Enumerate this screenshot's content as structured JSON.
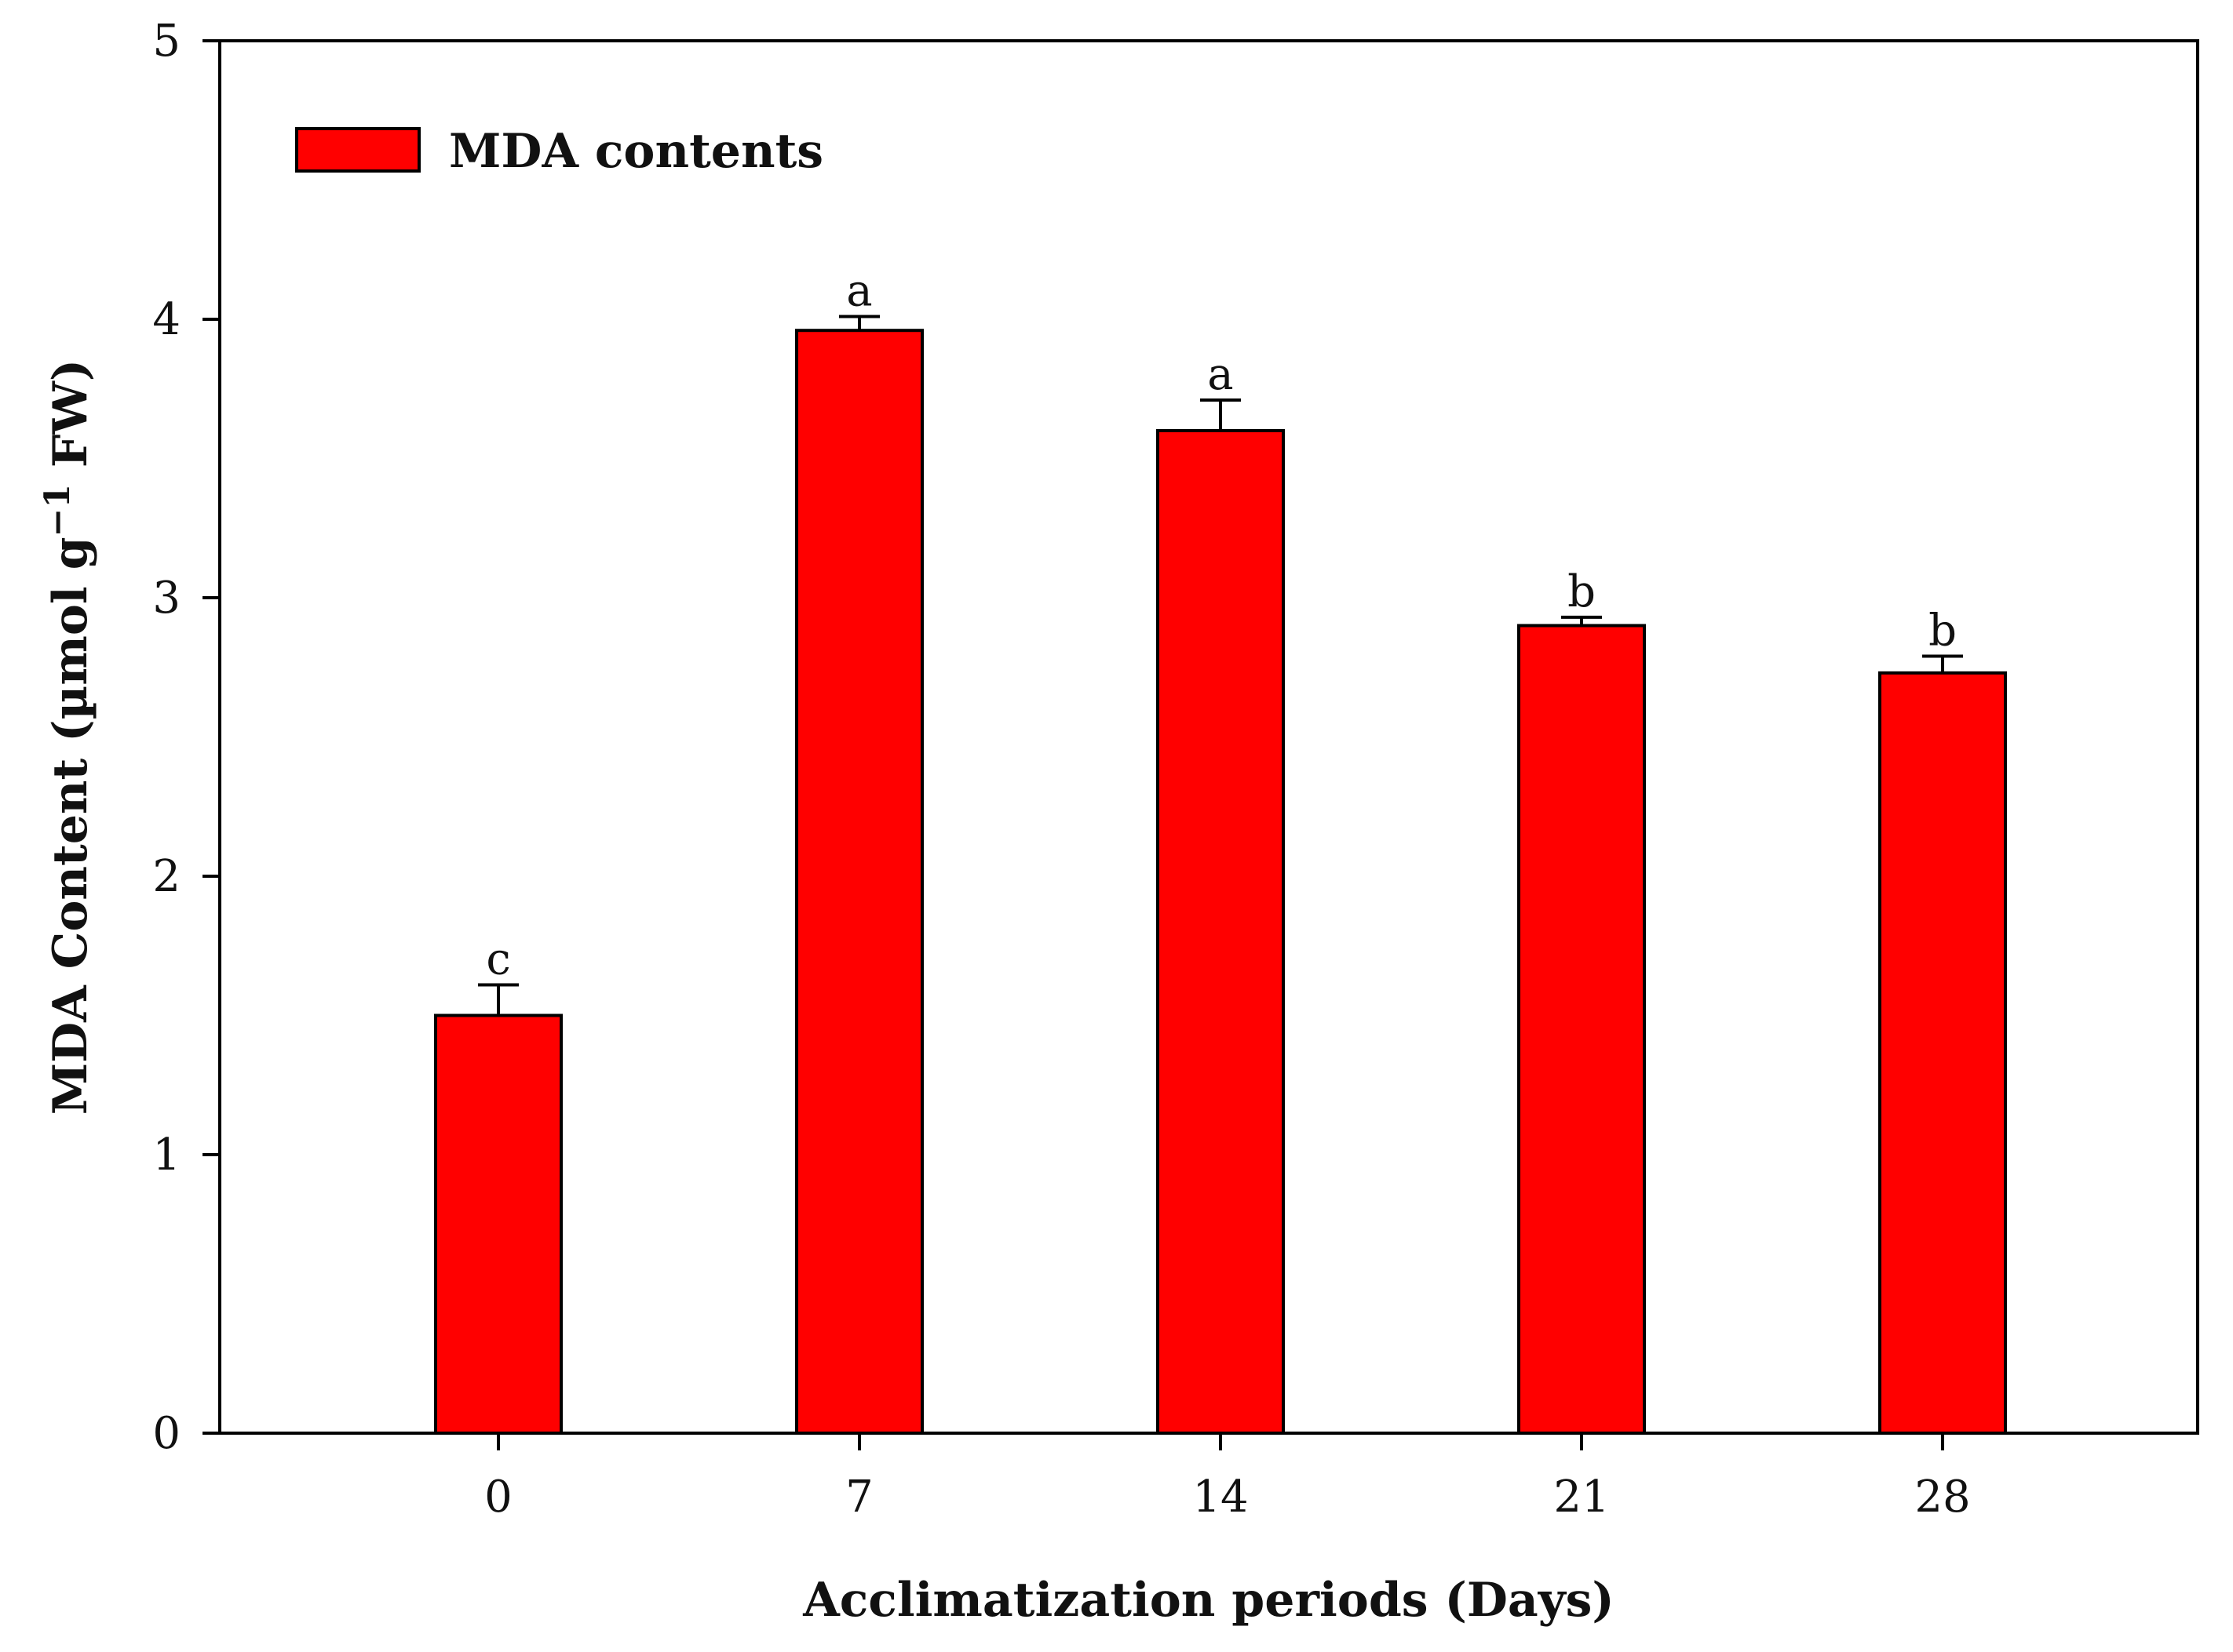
{
  "chart_data": {
    "type": "bar",
    "title": "",
    "xlabel": "Acclimatization periods (Days)",
    "ylabel": {
      "prefix": "MDA Content (µmol g",
      "superscript": "−1",
      "suffix": " FW)"
    },
    "categories": [
      "0",
      "7",
      "14",
      "21",
      "28"
    ],
    "series": [
      {
        "name": "MDA contents",
        "color": "#ff0000",
        "values": [
          1.5,
          3.96,
          3.6,
          2.9,
          2.73
        ],
        "errors": [
          0.11,
          0.05,
          0.11,
          0.03,
          0.06
        ],
        "significance": [
          "c",
          "a",
          "a",
          "b",
          "b"
        ]
      }
    ],
    "ylim": [
      0,
      5
    ],
    "yticks": [
      "0",
      "1",
      "2",
      "3",
      "4",
      "5"
    ],
    "grid": false,
    "legend_position": "top-left"
  },
  "colors": {
    "bar_fill": "#ff0000",
    "bar_stroke": "#000000",
    "axis": "#000000",
    "text": "#111111"
  }
}
